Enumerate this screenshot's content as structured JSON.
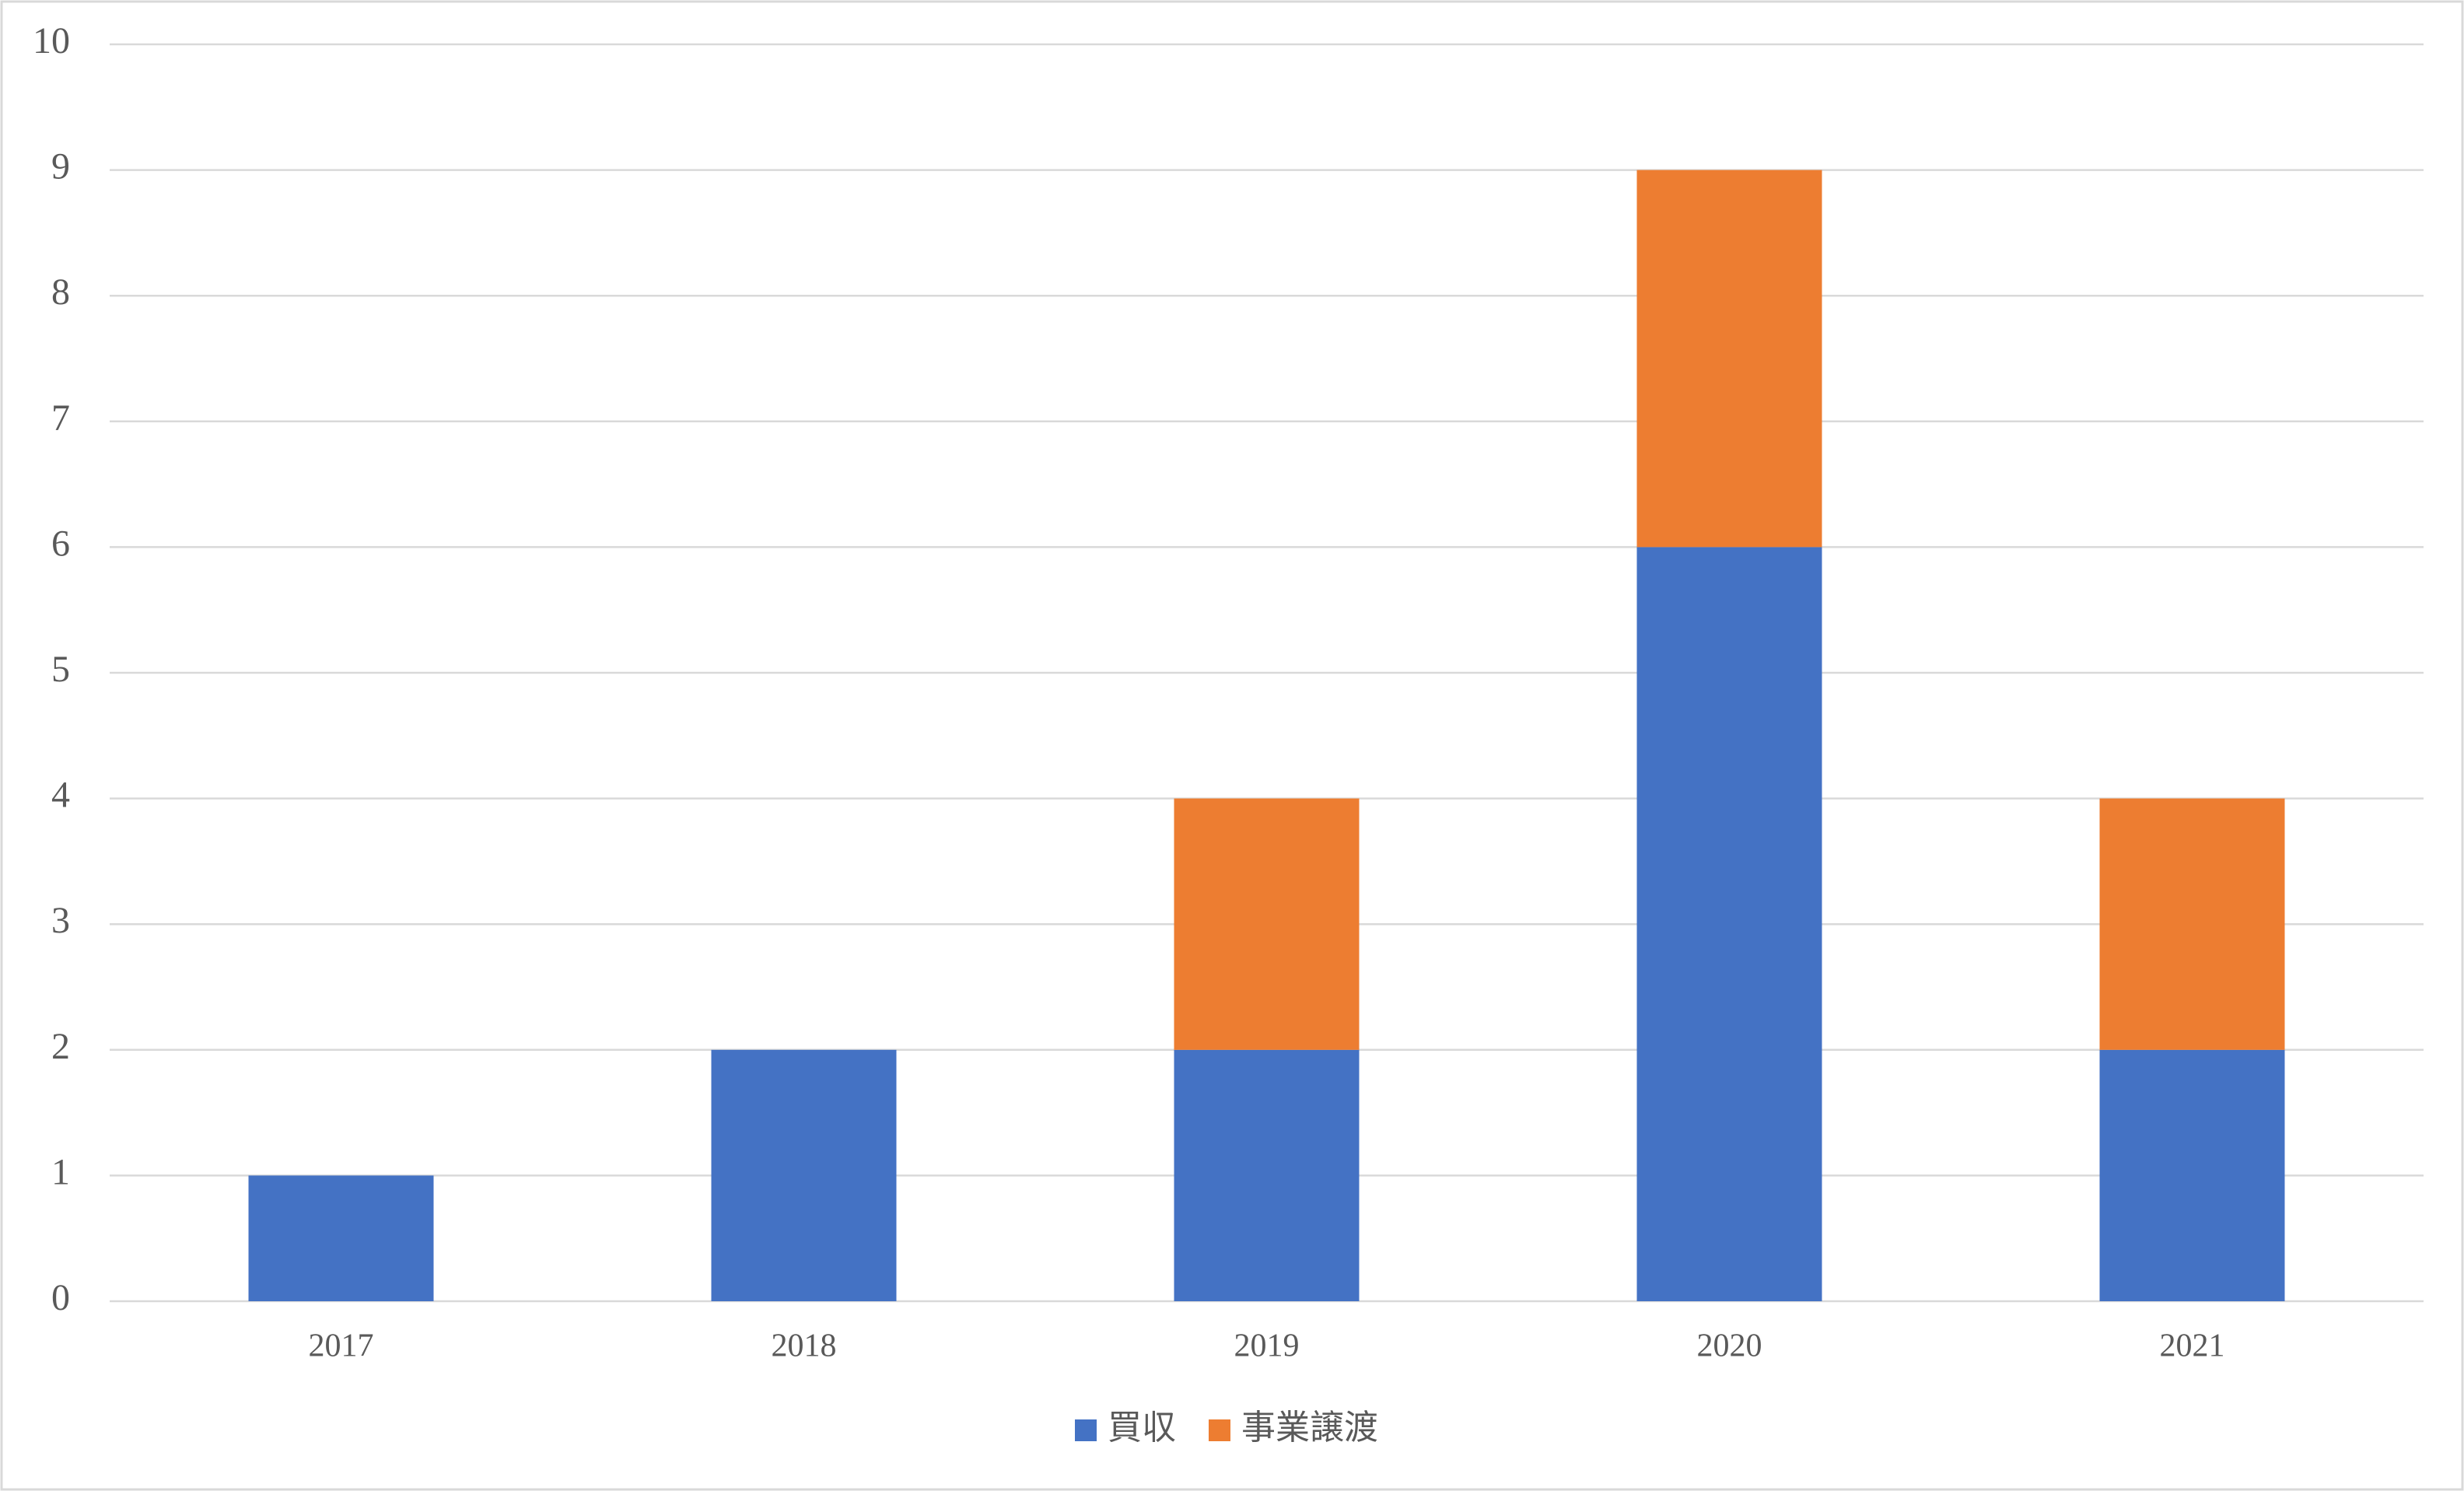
{
  "chart_data": {
    "type": "stacked-bar",
    "categories": [
      "2017",
      "2018",
      "2019",
      "2020",
      "2021"
    ],
    "series": [
      {
        "name": "買収",
        "color": "#4472c4",
        "values": [
          1,
          2,
          2,
          6,
          2
        ]
      },
      {
        "name": "事業譲渡",
        "color": "#ed7d31",
        "values": [
          0,
          0,
          2,
          3,
          2
        ]
      }
    ],
    "ylim": [
      0,
      10
    ],
    "yticks": [
      0,
      1,
      2,
      3,
      4,
      5,
      6,
      7,
      8,
      9,
      10
    ],
    "grid": true,
    "legend": "bottom"
  }
}
